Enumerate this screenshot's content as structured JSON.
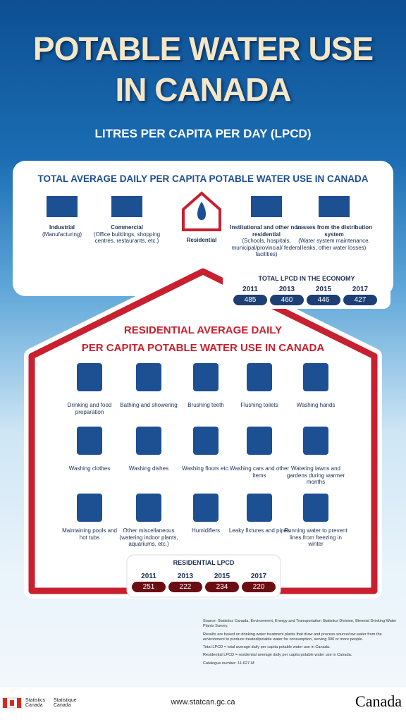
{
  "header": {
    "title_lines": [
      "POTABLE WATER USE",
      "IN CANADA"
    ],
    "subtitle": "LITRES PER CAPITA PER DAY (LPCD)"
  },
  "total_section": {
    "title": "TOTAL AVERAGE DAILY PER CAPITA POTABLE WATER USE IN CANADA",
    "sectors": [
      {
        "name": "Industrial",
        "detail": "(Manufacturing)"
      },
      {
        "name": "Commercial",
        "detail": "(Office buildings, shopping centres, restaurants, etc.)"
      },
      {
        "name": "Residential",
        "detail": null
      },
      {
        "name": "Institutional and other non-residential",
        "detail": "(Schools, hospitals, municipal/provincial/ federal facilities)"
      },
      {
        "name": "Losses from the distribution system",
        "detail": "(Water system maintenance, leaks, other water losses)"
      }
    ],
    "lpcd": {
      "label": "TOTAL LPCD IN THE ECONOMY",
      "years": [
        "2011",
        "2013",
        "2015",
        "2017"
      ],
      "values": [
        485,
        460,
        446,
        427
      ]
    }
  },
  "residential_section": {
    "title_lines": [
      "RESIDENTIAL AVERAGE DAILY",
      "PER CAPITA POTABLE WATER USE IN CANADA"
    ],
    "uses": [
      "Drinking and food preparation",
      "Bathing and showering",
      "Brushing teeth",
      "Flushing toilets",
      "Washing hands",
      "Washing clothes",
      "Washing dishes",
      "Washing floors etc.",
      "Washing cars and other items",
      "Watering lawns and gardens during warmer months",
      "Maintaining pools and hot tubs",
      "Other miscellaneous (watering indoor plants, aquariums, etc.)",
      "Humidifiers",
      "Leaky fixtures and pipes",
      "Running water to prevent lines from freezing in winter"
    ],
    "lpcd": {
      "label": "RESIDENTIAL LPCD",
      "years": [
        "2011",
        "2013",
        "2015",
        "2017"
      ],
      "values": [
        251,
        222,
        234,
        220
      ]
    }
  },
  "notes": [
    "Source: Statistics Canada, Environment, Energy and Transportation Statistics Division, Biennial Drinking Water Plants Survey.",
    "Results are based on drinking water treatment plants that draw and process source/raw water from the environment to produce treated/potable water for consumption, serving 300 or more people.",
    "Total LPCD = total average daily per capita potable water use in Canada.",
    "Residential LPCD = residential average daily per capita potable water use in Canada.",
    "Catalogue number: 11-627-M"
  ],
  "footer": {
    "agency_en": "Statistics Canada",
    "agency_fr": "Statistique Canada",
    "url": "www.statcan.gc.ca",
    "wordmark": "Canada"
  }
}
